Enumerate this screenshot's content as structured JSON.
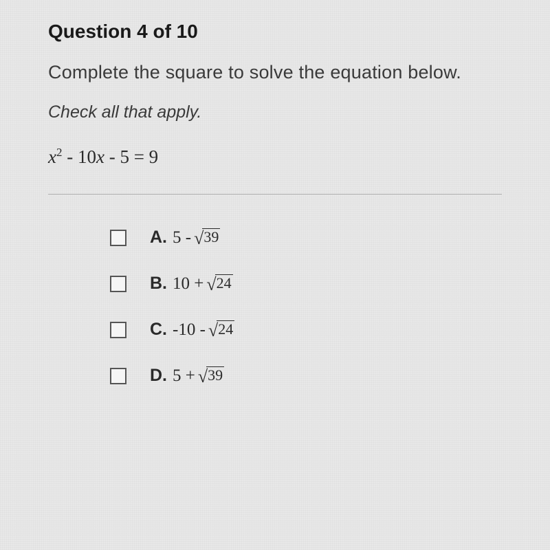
{
  "header": {
    "question_label": "Question 4 of 10"
  },
  "prompt": {
    "instruction": "Complete the square to solve the equation below.",
    "sub_instruction": "Check all that apply."
  },
  "equation": {
    "lhs_var": "x",
    "lhs_exp": "2",
    "lhs_rest": " - 10",
    "lhs_var2": "x",
    "lhs_rest2": " - 5 = 9"
  },
  "options": [
    {
      "letter": "A.",
      "prefix": "5 - ",
      "radicand": "39"
    },
    {
      "letter": "B.",
      "prefix": "10 + ",
      "radicand": "24"
    },
    {
      "letter": "C.",
      "prefix": "-10 - ",
      "radicand": "24"
    },
    {
      "letter": "D.",
      "prefix": "5 + ",
      "radicand": "39"
    }
  ],
  "style": {
    "background": "#e8e8e8",
    "text_color": "#2a2a2a",
    "divider_color": "#b0b0b0",
    "checkbox_border": "#555555",
    "heading_fontsize": 28,
    "body_fontsize": 27,
    "option_fontsize": 25
  }
}
